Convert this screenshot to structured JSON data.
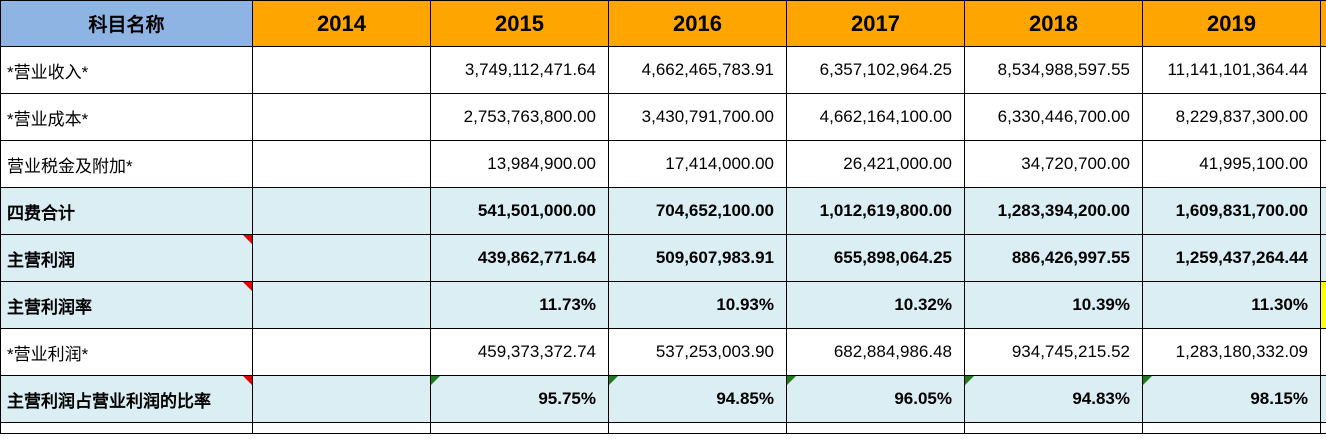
{
  "header": {
    "subject_label": "科目名称",
    "years": [
      "2014",
      "2015",
      "2016",
      "2017",
      "2018",
      "2019"
    ]
  },
  "rows": [
    {
      "label": "*营业收入*",
      "emphasis": false,
      "comment_marker": false,
      "values": [
        "",
        "3,749,112,471.64",
        "4,662,465,783.91",
        "6,357,102,964.25",
        "8,534,988,597.55",
        "11,141,101,364.44"
      ],
      "error_markers": [
        false,
        false,
        false,
        false,
        false,
        false
      ]
    },
    {
      "label": "*营业成本*",
      "emphasis": false,
      "comment_marker": false,
      "values": [
        "",
        "2,753,763,800.00",
        "3,430,791,700.00",
        "4,662,164,100.00",
        "6,330,446,700.00",
        "8,229,837,300.00"
      ],
      "error_markers": [
        false,
        false,
        false,
        false,
        false,
        false
      ]
    },
    {
      "label": "营业税金及附加*",
      "emphasis": false,
      "comment_marker": false,
      "values": [
        "",
        "13,984,900.00",
        "17,414,000.00",
        "26,421,000.00",
        "34,720,700.00",
        "41,995,100.00"
      ],
      "error_markers": [
        false,
        false,
        false,
        false,
        false,
        false
      ]
    },
    {
      "label": "四费合计",
      "emphasis": true,
      "comment_marker": false,
      "values": [
        "",
        "541,501,000.00",
        "704,652,100.00",
        "1,012,619,800.00",
        "1,283,394,200.00",
        "1,609,831,700.00"
      ],
      "error_markers": [
        false,
        false,
        false,
        false,
        false,
        false
      ]
    },
    {
      "label": "主营利润",
      "emphasis": true,
      "comment_marker": true,
      "values": [
        "",
        "439,862,771.64",
        "509,607,983.91",
        "655,898,064.25",
        "886,426,997.55",
        "1,259,437,264.44"
      ],
      "error_markers": [
        false,
        false,
        false,
        false,
        false,
        false
      ]
    },
    {
      "label": "主营利润率",
      "emphasis": true,
      "comment_marker": true,
      "values": [
        "",
        "11.73%",
        "10.93%",
        "10.32%",
        "10.39%",
        "11.30%"
      ],
      "error_markers": [
        false,
        false,
        false,
        false,
        false,
        false
      ],
      "next_col_color": "#FFFF00"
    },
    {
      "label": "*营业利润*",
      "emphasis": false,
      "comment_marker": false,
      "values": [
        "",
        "459,373,372.74",
        "537,253,003.90",
        "682,884,986.48",
        "934,745,215.52",
        "1,283,180,332.09"
      ],
      "error_markers": [
        false,
        false,
        false,
        false,
        false,
        false
      ]
    },
    {
      "label": "主营利润占营业利润的比率",
      "emphasis": true,
      "comment_marker": true,
      "values": [
        "",
        "95.75%",
        "94.85%",
        "96.05%",
        "94.83%",
        "98.15%"
      ],
      "error_markers": [
        false,
        true,
        true,
        true,
        true,
        true
      ]
    }
  ],
  "colors": {
    "header_subject_bg": "#8DB4E2",
    "header_year_bg": "#FFA500",
    "highlight_row_bg": "#DAEEF3",
    "plain_row_bg": "#FFFFFF",
    "comment_marker_red": "#E00000",
    "error_marker_green": "#1F7A1F",
    "partial_cell_yellow": "#FFFF00",
    "gridline": "#000000"
  }
}
